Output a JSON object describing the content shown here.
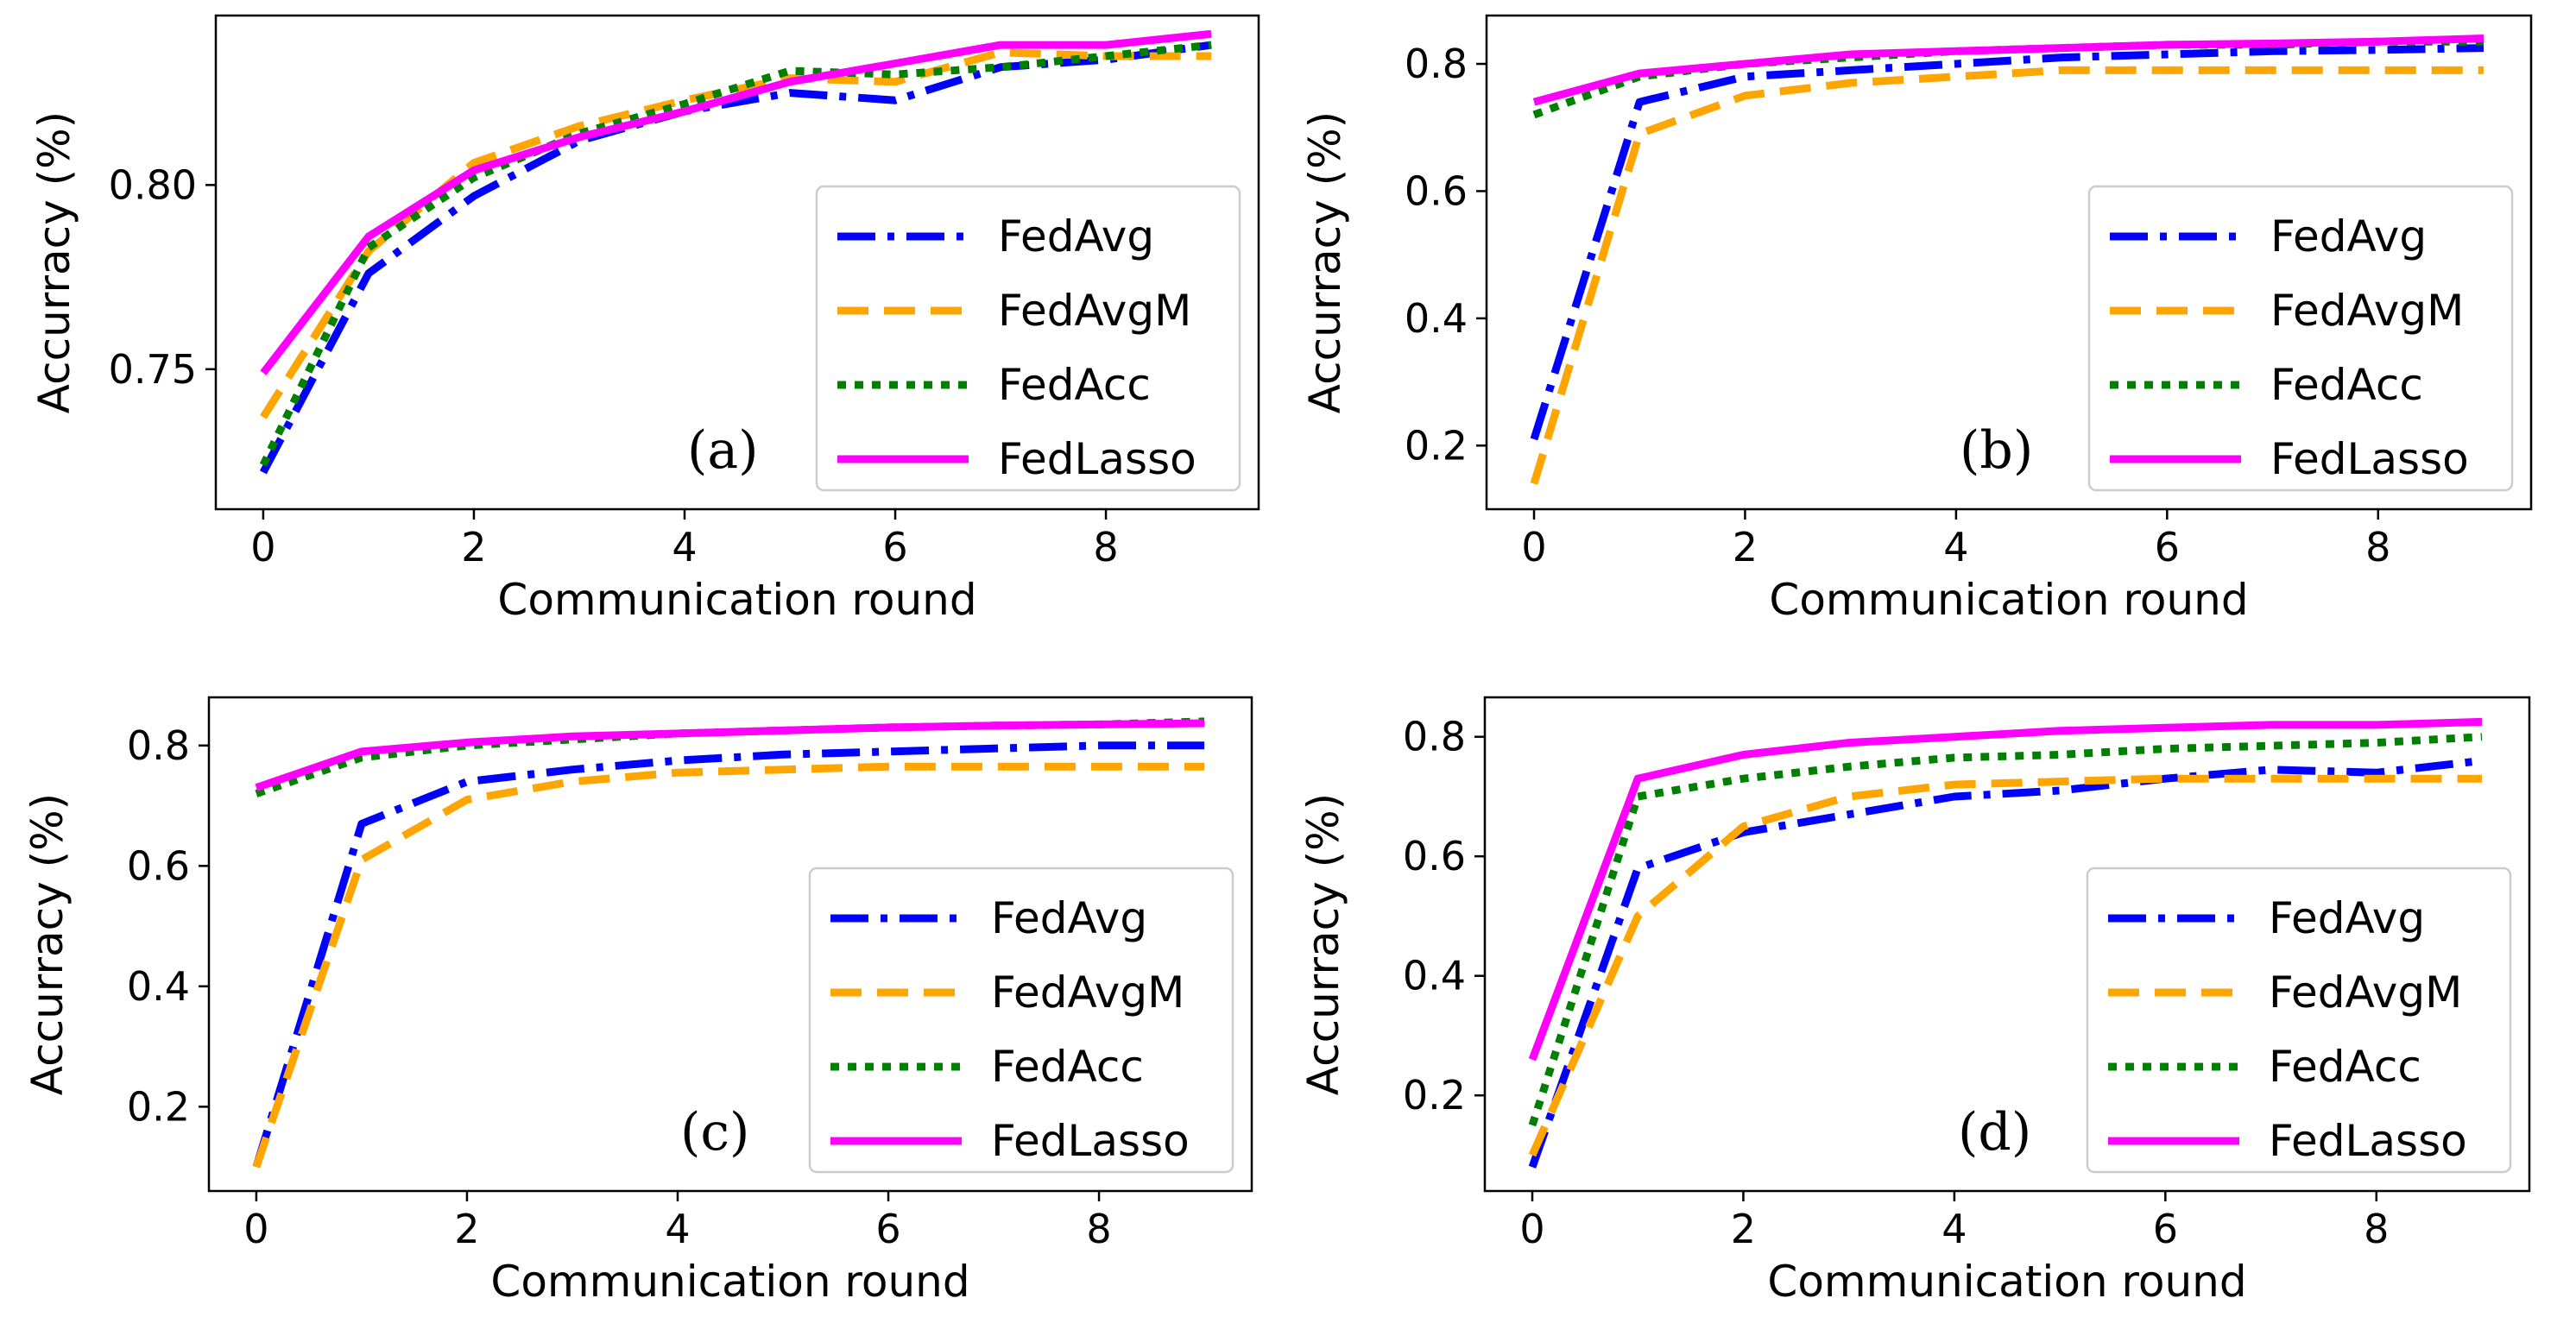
{
  "colors": {
    "FedAvg": "#0000ff",
    "FedAvgM": "#ffa500",
    "FedAcc": "#008000",
    "FedLasso": "#ff00ff"
  },
  "chart_data": [
    {
      "type": "line",
      "panel": "(a)",
      "xlabel": "Communication round",
      "ylabel": "Accurracy (%)",
      "x": [
        0,
        1,
        2,
        3,
        4,
        5,
        6,
        7,
        8,
        9
      ],
      "xlim": [
        -0.45,
        9.45
      ],
      "ylim": [
        0.712,
        0.846
      ],
      "xticks": [
        0,
        2,
        4,
        6,
        8
      ],
      "yticks": [
        0.75,
        0.8
      ],
      "ytick_labels": [
        "0.75",
        "0.80"
      ],
      "legend_position": "lower-right",
      "series": [
        {
          "name": "FedAvg",
          "values": [
            0.722,
            0.776,
            0.797,
            0.812,
            0.82,
            0.825,
            0.823,
            0.832,
            0.834,
            0.838
          ]
        },
        {
          "name": "FedAvgM",
          "values": [
            0.737,
            0.782,
            0.806,
            0.816,
            0.823,
            0.829,
            0.828,
            0.836,
            0.835,
            0.835
          ]
        },
        {
          "name": "FedAcc",
          "values": [
            0.724,
            0.783,
            0.802,
            0.814,
            0.822,
            0.831,
            0.83,
            0.832,
            0.835,
            0.838
          ]
        },
        {
          "name": "FedLasso",
          "values": [
            0.749,
            0.786,
            0.804,
            0.813,
            0.82,
            0.828,
            0.833,
            0.838,
            0.838,
            0.841
          ]
        }
      ]
    },
    {
      "type": "line",
      "panel": "(b)",
      "xlabel": "Communication round",
      "ylabel": "Accurracy (%)",
      "x": [
        0,
        1,
        2,
        3,
        4,
        5,
        6,
        7,
        8,
        9
      ],
      "xlim": [
        -0.45,
        9.45
      ],
      "ylim": [
        0.1,
        0.876
      ],
      "xticks": [
        0,
        2,
        4,
        6,
        8
      ],
      "yticks": [
        0.2,
        0.4,
        0.6,
        0.8
      ],
      "ytick_labels": [
        "0.2",
        "0.4",
        "0.6",
        "0.8"
      ],
      "legend_position": "lower-right",
      "series": [
        {
          "name": "FedAvg",
          "values": [
            0.21,
            0.74,
            0.78,
            0.79,
            0.8,
            0.81,
            0.815,
            0.82,
            0.822,
            0.825
          ]
        },
        {
          "name": "FedAvgM",
          "values": [
            0.14,
            0.69,
            0.75,
            0.77,
            0.78,
            0.79,
            0.79,
            0.79,
            0.79,
            0.79
          ]
        },
        {
          "name": "FedAcc",
          "values": [
            0.72,
            0.78,
            0.8,
            0.81,
            0.82,
            0.825,
            0.83,
            0.83,
            0.835,
            0.835
          ]
        },
        {
          "name": "FedLasso",
          "values": [
            0.74,
            0.785,
            0.8,
            0.815,
            0.82,
            0.825,
            0.83,
            0.832,
            0.835,
            0.84
          ]
        }
      ]
    },
    {
      "type": "line",
      "panel": "(c)",
      "xlabel": "Communication round",
      "ylabel": "Accurracy (%)",
      "x": [
        0,
        1,
        2,
        3,
        4,
        5,
        6,
        7,
        8,
        9
      ],
      "xlim": [
        -0.45,
        9.45
      ],
      "ylim": [
        0.06,
        0.88
      ],
      "xticks": [
        0,
        2,
        4,
        6,
        8
      ],
      "yticks": [
        0.2,
        0.4,
        0.6,
        0.8
      ],
      "ytick_labels": [
        "0.2",
        "0.4",
        "0.6",
        "0.8"
      ],
      "legend_position": "lower-right",
      "series": [
        {
          "name": "FedAvg",
          "values": [
            0.1,
            0.67,
            0.74,
            0.76,
            0.775,
            0.785,
            0.79,
            0.795,
            0.8,
            0.8
          ]
        },
        {
          "name": "FedAvgM",
          "values": [
            0.1,
            0.61,
            0.71,
            0.74,
            0.755,
            0.76,
            0.765,
            0.765,
            0.765,
            0.765
          ]
        },
        {
          "name": "FedAcc",
          "values": [
            0.72,
            0.78,
            0.8,
            0.81,
            0.82,
            0.825,
            0.83,
            0.833,
            0.835,
            0.84
          ]
        },
        {
          "name": "FedLasso",
          "values": [
            0.73,
            0.79,
            0.805,
            0.815,
            0.82,
            0.825,
            0.83,
            0.833,
            0.835,
            0.837
          ]
        }
      ]
    },
    {
      "type": "line",
      "panel": "(d)",
      "xlabel": "Communication round",
      "ylabel": "Accurracy (%)",
      "x": [
        0,
        1,
        2,
        3,
        4,
        5,
        6,
        7,
        8,
        9
      ],
      "xlim": [
        -0.45,
        9.45
      ],
      "ylim": [
        0.04,
        0.866
      ],
      "xticks": [
        0,
        2,
        4,
        6,
        8
      ],
      "yticks": [
        0.2,
        0.4,
        0.6,
        0.8
      ],
      "ytick_labels": [
        "0.2",
        "0.4",
        "0.6",
        "0.8"
      ],
      "legend_position": "lower-right",
      "series": [
        {
          "name": "FedAvg",
          "values": [
            0.08,
            0.58,
            0.64,
            0.67,
            0.7,
            0.71,
            0.73,
            0.745,
            0.74,
            0.76
          ]
        },
        {
          "name": "FedAvgM",
          "values": [
            0.1,
            0.5,
            0.65,
            0.7,
            0.72,
            0.725,
            0.73,
            0.73,
            0.73,
            0.73
          ]
        },
        {
          "name": "FedAcc",
          "values": [
            0.15,
            0.7,
            0.73,
            0.75,
            0.765,
            0.77,
            0.78,
            0.785,
            0.79,
            0.8
          ]
        },
        {
          "name": "FedLasso",
          "values": [
            0.26,
            0.73,
            0.77,
            0.79,
            0.8,
            0.81,
            0.815,
            0.82,
            0.82,
            0.825
          ]
        }
      ]
    }
  ]
}
